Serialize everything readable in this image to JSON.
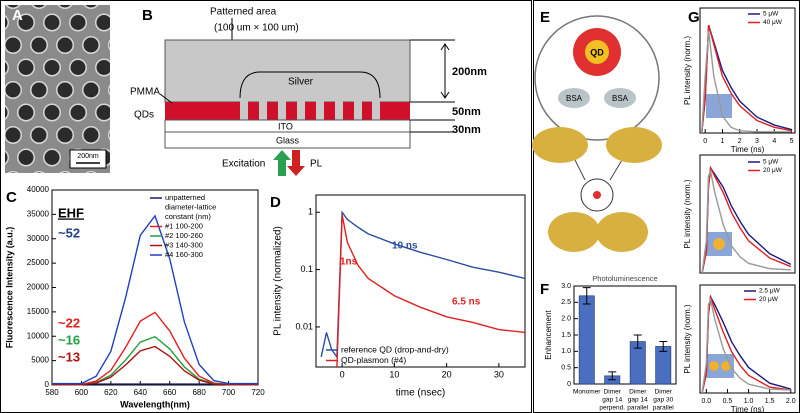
{
  "figure": {
    "labels": [
      "A",
      "B",
      "C",
      "D",
      "E",
      "F",
      "G"
    ],
    "panel_a": {
      "scale": "200nm"
    },
    "panel_b": {
      "area": "Patterned area",
      "size": "(100 um × 100 um)",
      "silver": "Silver",
      "pmma": "PMMA",
      "qds": "QDs",
      "ito": "ITO",
      "glass": "Glass",
      "d1": "200nm",
      "d2": "50nm",
      "d3": "30nm",
      "excitation": "Excitation",
      "pl": "PL"
    },
    "panel_e": {
      "qd": "QD",
      "bsa": [
        "BSA",
        "BSA"
      ]
    }
  },
  "chart_data": [
    {
      "type": "line",
      "xlabel": "Wavelength(nm)",
      "ylabel": "Fluorescence Intensity (a.u.)",
      "x": [
        580,
        590,
        600,
        610,
        620,
        630,
        640,
        650,
        660,
        670,
        680,
        690,
        700,
        710,
        720
      ],
      "xlim": [
        580,
        720
      ],
      "xticks": [
        580,
        600,
        620,
        640,
        660,
        680,
        700,
        720
      ],
      "ylim": [
        0,
        40000
      ],
      "yticks": [
        0,
        5000,
        10000,
        15000,
        20000,
        25000,
        30000,
        35000,
        40000
      ],
      "legend": "upper right",
      "legend_title": [
        "diameter-lattice",
        "constant (nm)"
      ],
      "series": [
        {
          "name": "unpatterned",
          "color": "#1a1a6e",
          "values": [
            200,
            200,
            200,
            200,
            200,
            200,
            200,
            200,
            200,
            200,
            200,
            200,
            200,
            200,
            200
          ]
        },
        {
          "name": "#1 100-200",
          "color": "#e02020",
          "values": [
            100,
            100,
            100,
            800,
            3000,
            7700,
            13100,
            14900,
            11100,
            5500,
            1800,
            400,
            100,
            100,
            100
          ]
        },
        {
          "name": "#2 100-260",
          "color": "#20a040",
          "values": [
            100,
            100,
            100,
            500,
            2000,
            5100,
            8800,
            9900,
            7400,
            3700,
            1200,
            300,
            100,
            100,
            100
          ]
        },
        {
          "name": "#3 140-300",
          "color": "#b01010",
          "values": [
            100,
            100,
            100,
            400,
            1600,
            4100,
            7000,
            7900,
            5900,
            2900,
            1000,
            200,
            100,
            100,
            100
          ]
        },
        {
          "name": "#4 160-300",
          "color": "#2040c0",
          "values": [
            300,
            300,
            300,
            1800,
            6900,
            17900,
            30700,
            34700,
            25900,
            12900,
            4200,
            900,
            300,
            300,
            300
          ]
        }
      ],
      "annotations": [
        {
          "text": "EHF",
          "color": "#000000"
        },
        {
          "text": "~52",
          "color": "#1f3f8f"
        },
        {
          "text": "~22",
          "color": "#e02020"
        },
        {
          "text": "~16",
          "color": "#20a040"
        },
        {
          "text": "~13",
          "color": "#b01010"
        }
      ]
    },
    {
      "type": "line",
      "xlabel": "time (nsec)",
      "ylabel": "PL intensity (normalized)",
      "ylog": true,
      "x": [
        -4,
        -3,
        -2,
        -1,
        0,
        1,
        3,
        5,
        10,
        15,
        20,
        25,
        30,
        35
      ],
      "xlim": [
        -5,
        35
      ],
      "xticks": [
        0,
        10,
        20,
        30
      ],
      "ylim": [
        0.002,
        2
      ],
      "yticks": [
        0.01,
        0.1,
        1
      ],
      "legend": "lower right",
      "series": [
        {
          "name": "reference QD (drop-and-dry)",
          "color": "#2a4fa0",
          "values": [
            0.003,
            0.008,
            0.004,
            0.003,
            1,
            0.75,
            0.55,
            0.42,
            0.28,
            0.2,
            0.15,
            0.11,
            0.09,
            0.07
          ]
        },
        {
          "name": "QD-plasmon (#4)",
          "color": "#e02020",
          "values": [
            null,
            null,
            null,
            0.002,
            0.9,
            0.3,
            0.12,
            0.07,
            0.035,
            0.022,
            0.015,
            0.012,
            0.009,
            0.008
          ]
        }
      ],
      "annotations": [
        {
          "text": "10 ns",
          "color": "#2a4fa0"
        },
        {
          "text": "1ns",
          "color": "#e02020"
        },
        {
          "text": "6.5 ns",
          "color": "#e02020"
        }
      ]
    },
    {
      "type": "bar",
      "title": "Photoluminescence",
      "ylabel": "Enhancement",
      "categories": [
        [
          "Monomer"
        ],
        [
          "Dimer",
          "gap 14",
          "perpend."
        ],
        [
          "Dimer",
          "gap 14",
          "parallel"
        ],
        [
          "Dimer",
          "gap 30",
          "parallel"
        ]
      ],
      "values": [
        2.7,
        0.25,
        1.3,
        1.15
      ],
      "errors": [
        0.25,
        0.12,
        0.2,
        0.15
      ],
      "color": "#4a6fc0",
      "ylim": [
        0,
        3
      ],
      "yticks": [
        0,
        0.5,
        {
          "value": 1,
          "label": "1.0"
        },
        1.5,
        {
          "value": 2,
          "label": "2.0"
        },
        2.5,
        {
          "value": 3,
          "label": "3.0"
        }
      ]
    },
    {
      "type": "line",
      "xlabel": "Time (ns)",
      "ylabel": "PL intensity (norm.)",
      "x": [
        -0.2,
        0,
        0.2,
        0.5,
        1,
        1.5,
        2,
        3,
        4,
        5
      ],
      "xlim": [
        -0.3,
        5.2
      ],
      "xticks": [
        0,
        1,
        2,
        3,
        4,
        5
      ],
      "ylim": [
        0,
        1.1
      ],
      "legend": "upper right",
      "series": [
        {
          "name": "5 μW",
          "color": "#1a1a80",
          "values": [
            0,
            0.3,
            0.95,
            0.8,
            0.55,
            0.4,
            0.28,
            0.14,
            0.07,
            0.03
          ]
        },
        {
          "name": "40 μW",
          "color": "#e02020",
          "values": [
            0,
            0.3,
            0.95,
            0.78,
            0.5,
            0.35,
            0.24,
            0.11,
            0.05,
            0.02
          ]
        },
        {
          "color": "#999999",
          "values": [
            0,
            0.5,
            0.9,
            0.5,
            0.15,
            0.05,
            0.02,
            0.01,
            0.01,
            0.01
          ]
        }
      ]
    },
    {
      "type": "line",
      "ylabel": "PL intensity (norm.)",
      "x": [
        -0.1,
        0,
        0.05,
        0.1,
        0.2,
        0.4,
        0.6,
        0.8,
        1,
        1.5,
        2
      ],
      "xlim": [
        -0.15,
        2.1
      ],
      "ylim": [
        0,
        1.1
      ],
      "legend": "upper right",
      "series": [
        {
          "name": "5 μW",
          "color": "#1a1a80",
          "values": [
            0,
            0.2,
            0.8,
            0.98,
            0.92,
            0.8,
            0.62,
            0.48,
            0.36,
            0.18,
            0.08
          ]
        },
        {
          "name": "20 μW",
          "color": "#e02020",
          "values": [
            0,
            0.2,
            0.8,
            0.98,
            0.9,
            0.75,
            0.56,
            0.42,
            0.3,
            0.14,
            0.06
          ]
        },
        {
          "color": "#999999",
          "values": [
            0,
            0.3,
            0.9,
            0.95,
            0.75,
            0.45,
            0.25,
            0.15,
            0.09,
            0.04,
            0.03
          ]
        }
      ]
    },
    {
      "type": "line",
      "xlabel": "Time (ns)",
      "ylabel": "PL intensity (norm.)",
      "x": [
        -0.1,
        0,
        0.05,
        0.1,
        0.2,
        0.4,
        0.6,
        0.8,
        1,
        1.5,
        2
      ],
      "xlim": [
        -0.15,
        2.1
      ],
      "xticks": [
        {
          "value": 0,
          "label": "0.0"
        },
        0.5,
        {
          "value": 1,
          "label": "1.0"
        },
        1.5,
        {
          "value": 2,
          "label": "2.0"
        }
      ],
      "ylim": [
        0,
        1.1
      ],
      "legend": "upper right",
      "series": [
        {
          "name": "2.5 μW",
          "color": "#1a1a80",
          "values": [
            0,
            0.2,
            0.8,
            0.98,
            0.9,
            0.72,
            0.52,
            0.38,
            0.26,
            0.1,
            0.04
          ]
        },
        {
          "name": "20 μW",
          "color": "#e02020",
          "values": [
            0,
            0.2,
            0.8,
            0.98,
            0.85,
            0.62,
            0.42,
            0.28,
            0.18,
            0.06,
            0.03
          ]
        },
        {
          "color": "#999999",
          "values": [
            0,
            0.3,
            0.9,
            0.95,
            0.75,
            0.45,
            0.25,
            0.15,
            0.09,
            0.04,
            0.03
          ]
        }
      ]
    }
  ]
}
